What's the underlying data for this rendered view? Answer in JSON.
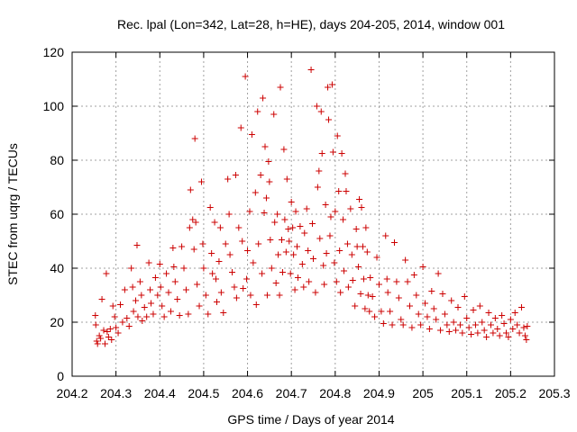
{
  "chart_data": {
    "type": "scatter",
    "title": "Rec. lpal (Lon=342, Lat=28, h=HE), days 204-205, 2014, window 001",
    "xlabel": "GPS time / Days of year 2014",
    "ylabel": "STEC from uqrg / TECUs",
    "xlim": [
      204.2,
      205.3
    ],
    "ylim": [
      0,
      120
    ],
    "xticks": [
      204.2,
      204.3,
      204.4,
      204.5,
      204.6,
      204.7,
      204.8,
      204.9,
      205,
      205.1,
      205.2,
      205.3
    ],
    "xtick_labels": [
      "204.2",
      "204.3",
      "204.4",
      "204.5",
      "204.6",
      "204.7",
      "204.8",
      "204.9",
      "205",
      "205.1",
      "205.2",
      "205.3"
    ],
    "yticks": [
      0,
      20,
      40,
      60,
      80,
      100,
      120
    ],
    "ytick_labels": [
      "0",
      "20",
      "40",
      "60",
      "80",
      "100",
      "120"
    ],
    "grid": true,
    "marker": "plus",
    "color": "#cc0000",
    "series": [
      {
        "points": [
          [
            204.253,
            22.5
          ],
          [
            204.254,
            19.0
          ],
          [
            204.256,
            13.0
          ],
          [
            204.258,
            12.0
          ],
          [
            204.262,
            15.0
          ],
          [
            204.265,
            14.0
          ],
          [
            204.268,
            28.5
          ],
          [
            204.272,
            17.0
          ],
          [
            204.275,
            12.0
          ],
          [
            204.278,
            38.0
          ],
          [
            204.28,
            16.5
          ],
          [
            204.283,
            14.5
          ],
          [
            204.287,
            17.5
          ],
          [
            204.29,
            13.5
          ],
          [
            204.293,
            26.0
          ],
          [
            204.297,
            22.0
          ],
          [
            204.3,
            18.0
          ],
          [
            204.305,
            16.0
          ],
          [
            204.31,
            26.5
          ],
          [
            204.315,
            20.0
          ],
          [
            204.32,
            32.0
          ],
          [
            204.325,
            21.5
          ],
          [
            204.33,
            18.5
          ],
          [
            204.335,
            40.0
          ],
          [
            204.338,
            33.0
          ],
          [
            204.34,
            24.0
          ],
          [
            204.345,
            28.0
          ],
          [
            204.348,
            48.5
          ],
          [
            204.35,
            22.0
          ],
          [
            204.355,
            35.0
          ],
          [
            204.358,
            30.0
          ],
          [
            204.36,
            20.5
          ],
          [
            204.365,
            25.5
          ],
          [
            204.37,
            22.0
          ],
          [
            204.375,
            42.0
          ],
          [
            204.378,
            32.0
          ],
          [
            204.38,
            27.0
          ],
          [
            204.385,
            23.0
          ],
          [
            204.39,
            36.5
          ],
          [
            204.395,
            30.0
          ],
          [
            204.4,
            41.5
          ],
          [
            204.402,
            33.0
          ],
          [
            204.405,
            26.0
          ],
          [
            204.41,
            22.0
          ],
          [
            204.415,
            38.0
          ],
          [
            204.42,
            31.0
          ],
          [
            204.425,
            24.0
          ],
          [
            204.43,
            47.5
          ],
          [
            204.432,
            40.5
          ],
          [
            204.435,
            35.0
          ],
          [
            204.44,
            28.5
          ],
          [
            204.445,
            22.5
          ],
          [
            204.45,
            48.0
          ],
          [
            204.455,
            40.0
          ],
          [
            204.46,
            32.0
          ],
          [
            204.465,
            23.0
          ],
          [
            204.468,
            55.0
          ],
          [
            204.47,
            69.0
          ],
          [
            204.475,
            58.0
          ],
          [
            204.478,
            47.0
          ],
          [
            204.48,
            88.0
          ],
          [
            204.482,
            57.0
          ],
          [
            204.485,
            34.0
          ],
          [
            204.49,
            26.0
          ],
          [
            204.495,
            72.0
          ],
          [
            204.498,
            49.0
          ],
          [
            204.5,
            40.0
          ],
          [
            204.505,
            30.0
          ],
          [
            204.51,
            23.0
          ],
          [
            204.515,
            62.5
          ],
          [
            204.518,
            45.5
          ],
          [
            204.52,
            38.0
          ],
          [
            204.525,
            57.0
          ],
          [
            204.528,
            36.0
          ],
          [
            204.53,
            27.5
          ],
          [
            204.535,
            42.5
          ],
          [
            204.538,
            55.0
          ],
          [
            204.54,
            31.0
          ],
          [
            204.545,
            23.5
          ],
          [
            204.55,
            49.0
          ],
          [
            204.555,
            73.0
          ],
          [
            204.558,
            60.0
          ],
          [
            204.56,
            45.0
          ],
          [
            204.565,
            38.5
          ],
          [
            204.57,
            33.0
          ],
          [
            204.573,
            74.5
          ],
          [
            204.575,
            29.0
          ],
          [
            204.58,
            55.0
          ],
          [
            204.585,
            92.0
          ],
          [
            204.588,
            50.0
          ],
          [
            204.59,
            32.5
          ],
          [
            204.595,
            111.0
          ],
          [
            204.598,
            36.0
          ],
          [
            204.6,
            46.5
          ],
          [
            204.605,
            61.0
          ],
          [
            204.607,
            30.0
          ],
          [
            204.61,
            89.5
          ],
          [
            204.613,
            42.0
          ],
          [
            204.618,
            68.0
          ],
          [
            204.62,
            26.5
          ],
          [
            204.623,
            98.0
          ],
          [
            204.625,
            49.0
          ],
          [
            204.63,
            74.5
          ],
          [
            204.633,
            38.0
          ],
          [
            204.635,
            103.0
          ],
          [
            204.638,
            60.5
          ],
          [
            204.64,
            85.0
          ],
          [
            204.643,
            66.0
          ],
          [
            204.645,
            30.0
          ],
          [
            204.648,
            79.5
          ],
          [
            204.65,
            72.0
          ],
          [
            204.652,
            50.5
          ],
          [
            204.655,
            40.0
          ],
          [
            204.66,
            97.0
          ],
          [
            204.662,
            57.0
          ],
          [
            204.665,
            34.5
          ],
          [
            204.668,
            60.0
          ],
          [
            204.67,
            45.0
          ],
          [
            204.673,
            30.0
          ],
          [
            204.675,
            107.0
          ],
          [
            204.678,
            50.5
          ],
          [
            204.68,
            38.5
          ],
          [
            204.683,
            84.0
          ],
          [
            204.685,
            58.0
          ],
          [
            204.688,
            46.0
          ],
          [
            204.69,
            73.0
          ],
          [
            204.693,
            54.5
          ],
          [
            204.695,
            50.0
          ],
          [
            204.698,
            38.0
          ],
          [
            204.7,
            64.5
          ],
          [
            204.703,
            55.0
          ],
          [
            204.705,
            45.0
          ],
          [
            204.708,
            32.0
          ],
          [
            204.71,
            61.0
          ],
          [
            204.713,
            48.0
          ],
          [
            204.715,
            36.5
          ],
          [
            204.72,
            55.5
          ],
          [
            204.725,
            41.5
          ],
          [
            204.728,
            33.0
          ],
          [
            204.73,
            53.0
          ],
          [
            204.735,
            62.0
          ],
          [
            204.738,
            46.5
          ],
          [
            204.74,
            35.0
          ],
          [
            204.745,
            113.5
          ],
          [
            204.748,
            56.5
          ],
          [
            204.75,
            43.5
          ],
          [
            204.755,
            31.0
          ],
          [
            204.758,
            100.0
          ],
          [
            204.76,
            70.0
          ],
          [
            204.763,
            76.0
          ],
          [
            204.765,
            51.0
          ],
          [
            204.768,
            98.0
          ],
          [
            204.77,
            82.5
          ],
          [
            204.773,
            41.0
          ],
          [
            204.775,
            34.0
          ],
          [
            204.778,
            63.5
          ],
          [
            204.78,
            45.5
          ],
          [
            204.783,
            107.0
          ],
          [
            204.785,
            95.0
          ],
          [
            204.788,
            52.0
          ],
          [
            204.79,
            59.0
          ],
          [
            204.793,
            108.0
          ],
          [
            204.795,
            83.0
          ],
          [
            204.798,
            42.0
          ],
          [
            204.8,
            61.0
          ],
          [
            204.803,
            35.0
          ],
          [
            204.805,
            89.0
          ],
          [
            204.808,
            68.5
          ],
          [
            204.81,
            46.5
          ],
          [
            204.812,
            31.0
          ],
          [
            204.815,
            82.5
          ],
          [
            204.818,
            58.0
          ],
          [
            204.82,
            39.0
          ],
          [
            204.823,
            75.0
          ],
          [
            204.825,
            68.5
          ],
          [
            204.828,
            49.0
          ],
          [
            204.83,
            33.0
          ],
          [
            204.835,
            62.0
          ],
          [
            204.838,
            45.0
          ],
          [
            204.84,
            35.5
          ],
          [
            204.845,
            26.0
          ],
          [
            204.848,
            54.5
          ],
          [
            204.85,
            48.0
          ],
          [
            204.853,
            40.5
          ],
          [
            204.855,
            65.5
          ],
          [
            204.858,
            30.5
          ],
          [
            204.86,
            62.5
          ],
          [
            204.863,
            48.0
          ],
          [
            204.865,
            36.0
          ],
          [
            204.868,
            25.0
          ],
          [
            204.87,
            55.0
          ],
          [
            204.873,
            46.0
          ],
          [
            204.875,
            30.0
          ],
          [
            204.878,
            24.0
          ],
          [
            204.88,
            36.5
          ],
          [
            204.885,
            29.5
          ],
          [
            204.89,
            22.0
          ],
          [
            204.895,
            44.0
          ],
          [
            204.9,
            34.0
          ],
          [
            204.905,
            24.0
          ],
          [
            204.91,
            19.5
          ],
          [
            204.915,
            52.0
          ],
          [
            204.918,
            36.0
          ],
          [
            204.92,
            31.0
          ],
          [
            204.925,
            24.0
          ],
          [
            204.93,
            19.0
          ],
          [
            204.935,
            49.5
          ],
          [
            204.94,
            35.0
          ],
          [
            204.945,
            29.0
          ],
          [
            204.95,
            21.0
          ],
          [
            204.955,
            19.0
          ],
          [
            204.96,
            43.0
          ],
          [
            204.965,
            35.0
          ],
          [
            204.97,
            26.0
          ],
          [
            204.975,
            18.0
          ],
          [
            204.98,
            37.5
          ],
          [
            204.985,
            30.0
          ],
          [
            204.99,
            23.0
          ],
          [
            204.995,
            19.0
          ],
          [
            205.0,
            40.5
          ],
          [
            205.005,
            27.0
          ],
          [
            205.01,
            22.0
          ],
          [
            205.015,
            17.5
          ],
          [
            205.02,
            31.5
          ],
          [
            205.025,
            25.0
          ],
          [
            205.03,
            21.0
          ],
          [
            205.035,
            38.0
          ],
          [
            205.04,
            17.0
          ],
          [
            205.045,
            30.5
          ],
          [
            205.05,
            23.0
          ],
          [
            205.055,
            19.0
          ],
          [
            205.06,
            16.5
          ],
          [
            205.065,
            28.0
          ],
          [
            205.07,
            20.0
          ],
          [
            205.075,
            17.0
          ],
          [
            205.08,
            25.5
          ],
          [
            205.085,
            19.0
          ],
          [
            205.09,
            16.0
          ],
          [
            205.095,
            29.5
          ],
          [
            205.1,
            21.5
          ],
          [
            205.105,
            18.0
          ],
          [
            205.11,
            15.5
          ],
          [
            205.115,
            24.5
          ],
          [
            205.12,
            19.0
          ],
          [
            205.125,
            16.0
          ],
          [
            205.13,
            26.0
          ],
          [
            205.135,
            20.0
          ],
          [
            205.14,
            17.0
          ],
          [
            205.145,
            14.5
          ],
          [
            205.15,
            23.5
          ],
          [
            205.155,
            19.0
          ],
          [
            205.16,
            16.0
          ],
          [
            205.165,
            21.5
          ],
          [
            205.17,
            17.5
          ],
          [
            205.175,
            15.0
          ],
          [
            205.18,
            22.5
          ],
          [
            205.185,
            19.5
          ],
          [
            205.19,
            16.0
          ],
          [
            205.195,
            14.5
          ],
          [
            205.2,
            21.0
          ],
          [
            205.205,
            17.5
          ],
          [
            205.21,
            23.5
          ],
          [
            205.215,
            19.0
          ],
          [
            205.22,
            16.0
          ],
          [
            205.225,
            25.5
          ],
          [
            205.23,
            18.0
          ],
          [
            205.233,
            15.0
          ],
          [
            205.236,
            13.5
          ],
          [
            205.238,
            18.5
          ]
        ]
      }
    ]
  }
}
